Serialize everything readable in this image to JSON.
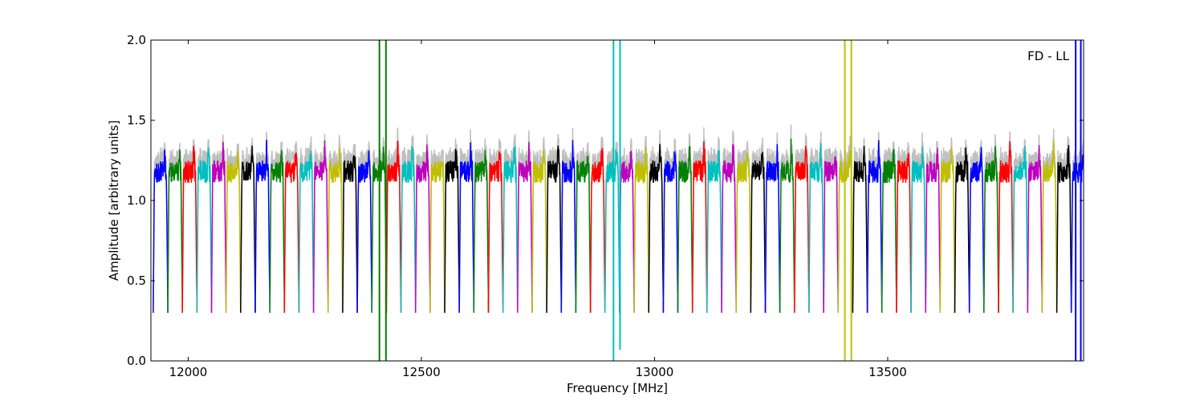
{
  "chart_data": {
    "type": "line",
    "title": "",
    "annotation": "FD - LL",
    "xlabel": "Frequency [MHz]",
    "ylabel": "Amplitude [arbitrary units]",
    "xlim": [
      11920,
      13920
    ],
    "ylim": [
      0.0,
      2.0
    ],
    "xticks": [
      12000,
      12500,
      13000,
      13500
    ],
    "yticks": [
      0.0,
      0.5,
      1.0,
      1.5,
      2.0
    ],
    "xtick_labels": [
      "12000",
      "12500",
      "13000",
      "13500"
    ],
    "ytick_labels": [
      "0.0",
      "0.5",
      "1.0",
      "1.5",
      "2.0"
    ],
    "grid": false,
    "legend": "none",
    "band": {
      "first_start": 11925,
      "width": 31.25,
      "count": 64,
      "trough": 0.3,
      "plateau": 1.18
    },
    "colors": [
      "#0000ff",
      "#008000",
      "#ff0000",
      "#00bfbf",
      "#bf00bf",
      "#bfbf00",
      "#000000"
    ],
    "shadow_color": "#bfbfbf",
    "spikes": [
      {
        "x": 12410,
        "ymin": 0.0,
        "ymax": 2.0,
        "color": "#008000"
      },
      {
        "x": 12424,
        "ymin": 0.0,
        "ymax": 2.0,
        "color": "#008000"
      },
      {
        "x": 12912,
        "ymin": 0.0,
        "ymax": 2.0,
        "color": "#00bfbf"
      },
      {
        "x": 12926,
        "ymin": 0.07,
        "ymax": 2.0,
        "color": "#00bfbf"
      },
      {
        "x": 13408,
        "ymin": 0.0,
        "ymax": 2.0,
        "color": "#bfbf00"
      },
      {
        "x": 13422,
        "ymin": 0.0,
        "ymax": 2.0,
        "color": "#bfbf00"
      },
      {
        "x": 13903,
        "ymin": 0.0,
        "ymax": 2.0,
        "color": "#0000ff"
      },
      {
        "x": 13914,
        "ymin": 0.0,
        "ymax": 2.0,
        "color": "#0000ff"
      }
    ]
  }
}
